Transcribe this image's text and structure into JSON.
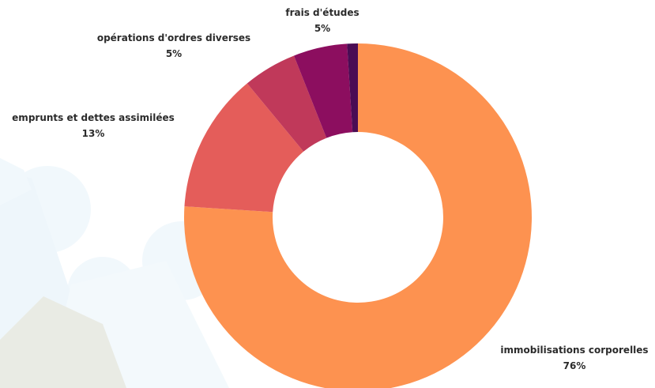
{
  "chart_data": {
    "type": "donut",
    "categories": [
      "immobilisations corporelles",
      "emprunts et dettes assimilées",
      "opérations d'ordres diverses",
      "frais d'études",
      null
    ],
    "values": [
      76,
      13,
      5,
      5,
      1
    ],
    "value_labels": [
      "76%",
      "13%",
      "5%",
      "5%",
      null
    ],
    "colors": [
      "#fd9250",
      "#e45d5a",
      "#c0395a",
      "#8c0e5f",
      "#4a0c54"
    ]
  }
}
